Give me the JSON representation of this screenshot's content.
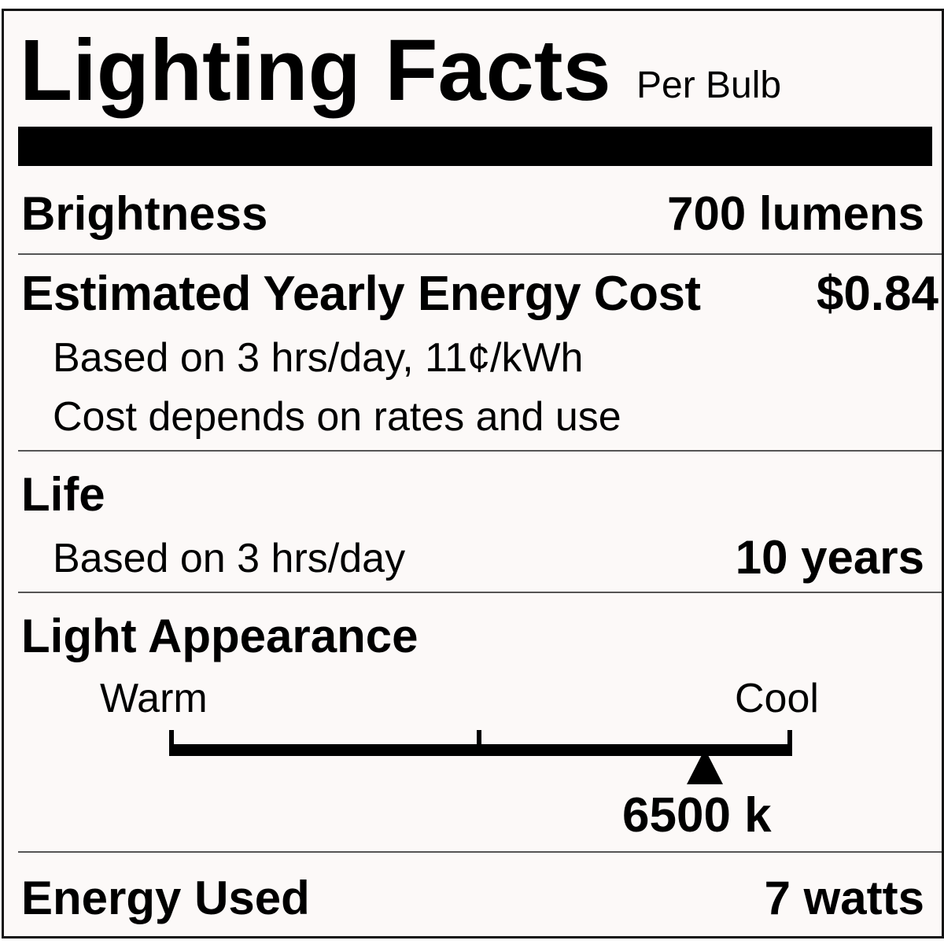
{
  "title": "Lighting Facts",
  "subtitle": "Per Bulb",
  "brightness": {
    "label": "Brightness",
    "value": "700 lumens"
  },
  "energy_cost": {
    "label": "Estimated Yearly Energy Cost",
    "value": "$0.84",
    "note1": "Based on 3 hrs/day, 11¢/kWh",
    "note2": "Cost depends on rates and use"
  },
  "life": {
    "label": "Life",
    "note": "Based on 3 hrs/day",
    "value": "10 years"
  },
  "light_appearance": {
    "label": "Light Appearance",
    "warm_label": "Warm",
    "cool_label": "Cool",
    "value": "6500 k",
    "scale_position": 0.86
  },
  "energy_used": {
    "label": "Energy Used",
    "value": "7 watts"
  }
}
